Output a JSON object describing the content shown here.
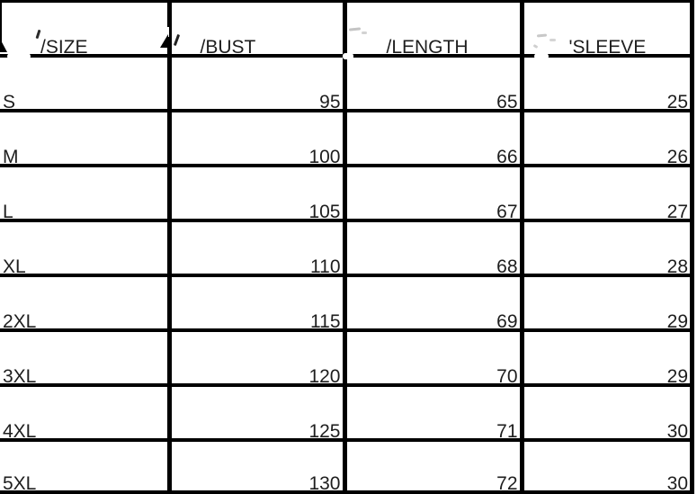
{
  "chart_data": {
    "type": "table",
    "columns": [
      "/SIZE",
      "/BUST",
      "/LENGTH",
      "'SLEEVE"
    ],
    "rows": [
      [
        "S",
        "95",
        "65",
        "25"
      ],
      [
        "M",
        "100",
        "66",
        "26"
      ],
      [
        "L",
        "105",
        "67",
        "27"
      ],
      [
        "XL",
        "110",
        "68",
        "28"
      ],
      [
        "2XL",
        "115",
        "69",
        "29"
      ],
      [
        "3XL",
        "120",
        "70",
        "29"
      ],
      [
        "4XL",
        "125",
        "71",
        "30"
      ],
      [
        "5XL",
        "130",
        "72",
        "30"
      ]
    ]
  },
  "colors": {
    "grid_line": "#000000",
    "text": "#1e1e1e",
    "background": "#ffffff"
  }
}
